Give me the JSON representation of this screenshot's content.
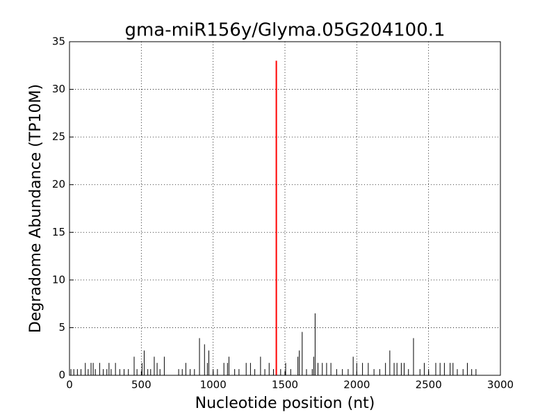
{
  "chart_data": {
    "type": "stem",
    "title": "gma-miR156y/Glyma.05G204100.1",
    "x_label": "Nucleotide position (nt)",
    "y_label": "Degradome Abundance (TP10M)",
    "xlim": [
      0,
      3000
    ],
    "xticks": [
      0,
      500,
      1000,
      1500,
      2000,
      2500,
      3000
    ],
    "ylim": [
      0,
      35
    ],
    "yticks": [
      0,
      5,
      10,
      15,
      20,
      25,
      30,
      35
    ],
    "grid": true,
    "series": [
      {
        "color": "#000000",
        "x": [
          10,
          30,
          55,
          80,
          110,
          130,
          150,
          165,
          180,
          210,
          235,
          260,
          275,
          290,
          320,
          350,
          380,
          410,
          450,
          470,
          505,
          520,
          545,
          565,
          590,
          610,
          630,
          660,
          760,
          785,
          810,
          840,
          870,
          905,
          940,
          960,
          970,
          1000,
          1030,
          1075,
          1100,
          1110,
          1150,
          1180,
          1230,
          1260,
          1290,
          1330,
          1360,
          1390,
          1420,
          1470,
          1505,
          1540,
          1590,
          1600,
          1620,
          1650,
          1690,
          1700,
          1710,
          1730,
          1760,
          1790,
          1820,
          1860,
          1900,
          1940,
          1975,
          2000,
          2040,
          2080,
          2120,
          2160,
          2200,
          2230,
          2260,
          2280,
          2310,
          2330,
          2360,
          2395,
          2440,
          2470,
          2500,
          2550,
          2580,
          2610,
          2650,
          2670,
          2700,
          2740,
          2770,
          2800,
          2830
        ],
        "values": [
          0.65,
          0.65,
          0.65,
          0.65,
          1.3,
          0.65,
          1.3,
          1.3,
          0.65,
          1.3,
          0.65,
          0.65,
          1.3,
          0.65,
          1.3,
          0.65,
          0.65,
          0.65,
          1.95,
          0.65,
          1.3,
          2.6,
          0.65,
          0.65,
          1.95,
          1.3,
          0.65,
          1.95,
          0.65,
          0.65,
          1.3,
          0.65,
          0.65,
          3.9,
          3.25,
          1.3,
          2.6,
          0.65,
          0.65,
          1.3,
          1.3,
          1.95,
          0.65,
          0.65,
          1.3,
          1.3,
          0.65,
          1.95,
          0.65,
          1.3,
          0.65,
          0.65,
          1.3,
          0.65,
          1.95,
          2.6,
          4.55,
          0.65,
          0.65,
          1.95,
          6.5,
          1.3,
          1.3,
          1.3,
          1.3,
          0.65,
          0.65,
          0.65,
          1.95,
          1.3,
          1.3,
          1.3,
          0.65,
          0.65,
          1.3,
          2.6,
          1.3,
          1.3,
          1.3,
          1.3,
          0.65,
          3.9,
          0.65,
          1.3,
          0.65,
          1.3,
          1.3,
          1.3,
          1.3,
          1.3,
          0.65,
          0.65,
          1.3,
          0.65,
          0.65
        ]
      },
      {
        "color": "#ff0000",
        "x": [
          1440
        ],
        "values": [
          33
        ]
      }
    ]
  }
}
